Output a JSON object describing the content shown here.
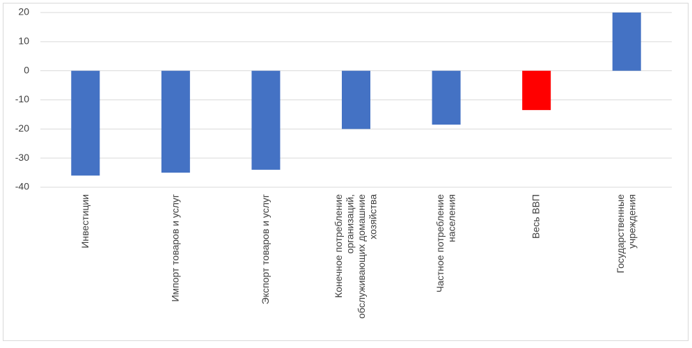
{
  "chart_data": {
    "type": "bar",
    "categories": [
      "Инвестиции",
      "Импорт товаров и услуг",
      "Экспорт товаров и услуг",
      "Конечное потребление организаций, обслуживающих домашние хозяйства",
      "Частное потребление населения",
      "Весь ВВП",
      "Государственные учреждения"
    ],
    "values": [
      -36,
      -35,
      -34,
      -20,
      -18.5,
      -13.5,
      20
    ],
    "colors": [
      "#4472c4",
      "#4472c4",
      "#4472c4",
      "#4472c4",
      "#4472c4",
      "#ff0000",
      "#4472c4"
    ],
    "ylim": [
      -40,
      20
    ],
    "yticks": [
      -40,
      -30,
      -20,
      -10,
      0,
      10,
      20
    ],
    "grid": true
  }
}
